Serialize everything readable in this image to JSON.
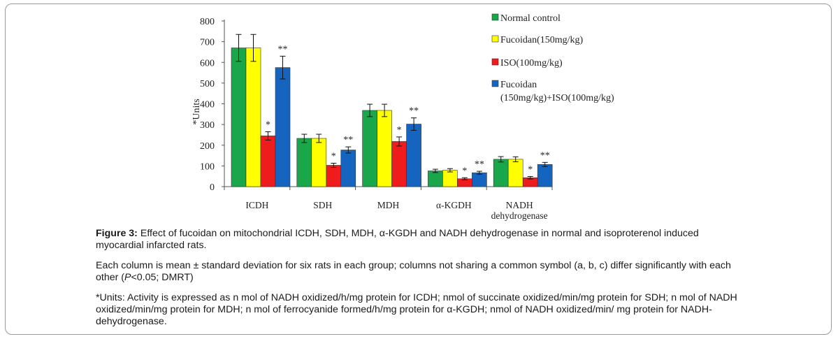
{
  "chart_data": {
    "type": "bar",
    "ylabel": "*Units",
    "ylim": [
      0,
      800
    ],
    "yticks": [
      0,
      100,
      200,
      300,
      400,
      500,
      600,
      700,
      800
    ],
    "categories": [
      "ICDH",
      "SDH",
      "MDH",
      "α-KGDH",
      "NADH dehydrogenase"
    ],
    "category_lines": [
      [
        "ICDH"
      ],
      [
        "SDH"
      ],
      [
        "MDH"
      ],
      [
        "α-KGDH"
      ],
      [
        "NADH",
        "dehydrogenase"
      ]
    ],
    "series": [
      {
        "name": "Normal control",
        "color": "#1aa64a",
        "values": [
          670,
          233,
          368,
          76,
          132
        ],
        "errors": [
          65,
          20,
          30,
          8,
          13
        ],
        "symbols": [
          "",
          "",
          "",
          "",
          ""
        ]
      },
      {
        "name": "Fucoidan(150mg/kg)",
        "color": "#ffff00",
        "values": [
          670,
          233,
          368,
          79,
          132
        ],
        "errors": [
          65,
          20,
          30,
          8,
          12
        ],
        "symbols": [
          "",
          "",
          "",
          "",
          ""
        ]
      },
      {
        "name": "ISO(100mg/kg)",
        "color": "#ee1c1c",
        "values": [
          245,
          103,
          218,
          38,
          43
        ],
        "errors": [
          20,
          10,
          22,
          5,
          6
        ],
        "symbols": [
          "*",
          "*",
          "*",
          "*",
          "*"
        ]
      },
      {
        "name": "Fucoidan (150mg/kg)+ISO(100mg/kg)",
        "color": "#1565c0",
        "values": [
          575,
          177,
          302,
          67,
          107
        ],
        "errors": [
          55,
          15,
          30,
          7,
          10
        ],
        "symbols": [
          "**",
          "**",
          "**",
          "**",
          "**"
        ]
      }
    ],
    "legend_position": "top-right",
    "legend_lines": [
      [
        "Normal control"
      ],
      [
        "Fucoidan(150mg/kg)"
      ],
      [
        "ISO(100mg/kg)"
      ],
      [
        "Fucoidan",
        "(150mg/kg)+ISO(100mg/kg)"
      ]
    ],
    "grid": false
  },
  "caption": {
    "figure_label": "Figure 3:",
    "figure_text": " Effect of fucoidan on mitochondrial ICDH, SDH, MDH, α-KGDH and NADH dehydrogenase in normal and isoproterenol induced myocardial infarcted rats.",
    "note_before": "Each column is mean ± standard deviation for six rats in each group; columns not sharing a common symbol (a, b, c) differ significantly with each other (",
    "note_p": "P",
    "note_after": "<0.05; DMRT)",
    "units": "*Units: Activity is expressed as n mol of NADH oxidized/h/mg protein for ICDH; nmol of succinate oxidized/min/mg protein for SDH; n mol of NADH oxidized/min/mg protein for MDH; n mol of ferrocyanide formed/h/mg protein for α-KGDH; nmol of NADH oxidized/min/ mg protein for NADH-dehydrogenase."
  }
}
